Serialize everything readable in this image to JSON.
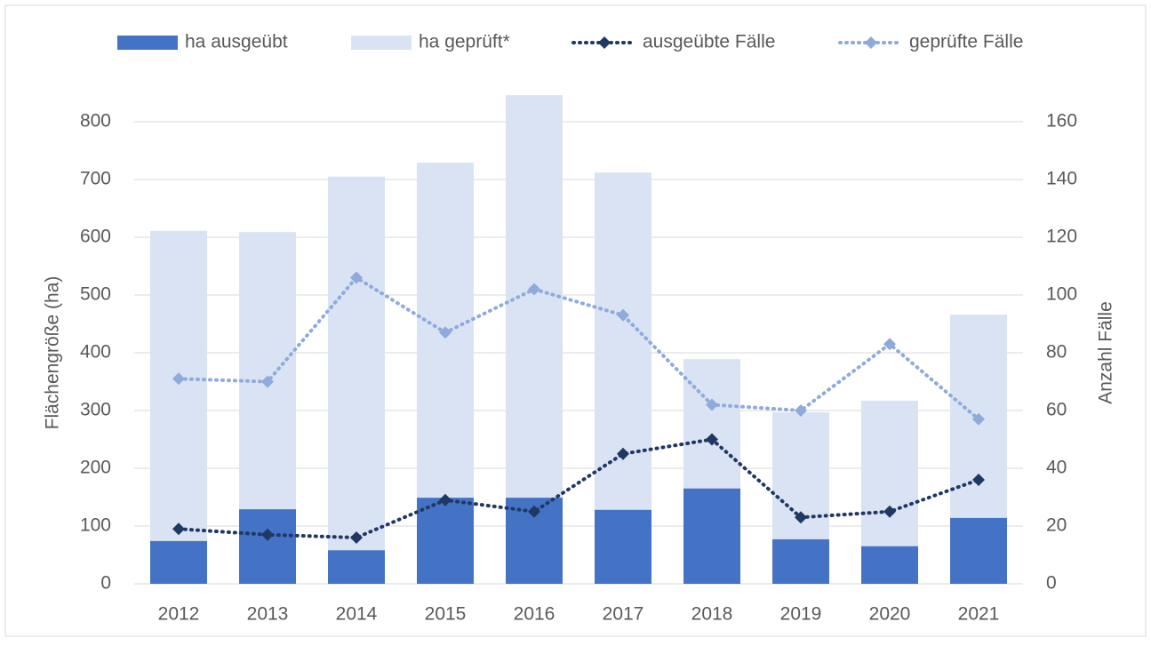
{
  "chart_data": {
    "type": "bar",
    "categories": [
      "2012",
      "2013",
      "2014",
      "2015",
      "2016",
      "2017",
      "2018",
      "2019",
      "2020",
      "2021"
    ],
    "series": [
      {
        "name": "ha ausgeübt",
        "type": "bar",
        "color": "#4472c4",
        "values": [
          74,
          129,
          58,
          149,
          149,
          128,
          165,
          77,
          65,
          114
        ]
      },
      {
        "name": "ha geprüft*",
        "type": "bar",
        "color": "#dae3f3",
        "values": [
          611,
          609,
          705,
          729,
          846,
          712,
          389,
          297,
          317,
          466
        ]
      },
      {
        "name": "ausgeübte Fälle",
        "type": "line",
        "axis": "y2",
        "color": "#203864",
        "values": [
          19,
          17,
          16,
          29,
          25,
          45,
          50,
          23,
          25,
          36
        ]
      },
      {
        "name": "geprüfte Fälle",
        "type": "line",
        "axis": "y2",
        "color": "#8faadc",
        "values": [
          71,
          70,
          106,
          87,
          102,
          93,
          62,
          60,
          83,
          57
        ]
      }
    ],
    "y_label": "Flächengröße (ha)",
    "y2_label": "Anzahl Fälle",
    "ylim": [
      0,
      800
    ],
    "yticks": [
      0,
      100,
      200,
      300,
      400,
      500,
      600,
      700,
      800
    ],
    "y2lim": [
      0,
      160
    ],
    "y2ticks": [
      0,
      20,
      40,
      60,
      80,
      100,
      120,
      140,
      160
    ],
    "grid": true,
    "legend": "top"
  }
}
